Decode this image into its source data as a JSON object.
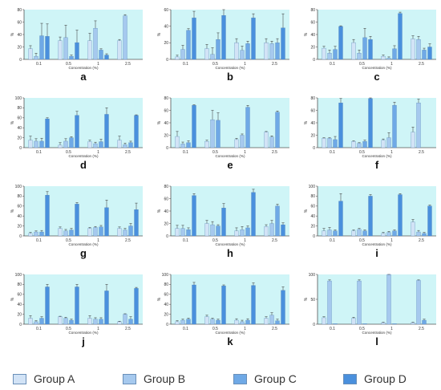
{
  "chart_data": [
    {
      "panel": "a",
      "type": "bar",
      "ylabel": "%",
      "xlabel": "Concentration (%)",
      "categories": [
        "0.1",
        "0.5",
        "1",
        "2.5"
      ],
      "ylim": [
        0,
        80
      ],
      "yticks": [
        0,
        20,
        40,
        60,
        80
      ],
      "series": [
        {
          "name": "Group A",
          "values": [
            17,
            30,
            30,
            30
          ],
          "errors": [
            5,
            6,
            12,
            2
          ]
        },
        {
          "name": "Group B",
          "values": [
            5,
            35,
            50,
            70
          ],
          "errors": [
            5,
            20,
            12,
            2
          ]
        },
        {
          "name": "Group C",
          "values": [
            38,
            5,
            15,
            null
          ],
          "errors": [
            20,
            2,
            2,
            null
          ]
        },
        {
          "name": "Group D",
          "values": [
            37,
            27,
            7,
            null
          ],
          "errors": [
            20,
            20,
            2,
            null
          ]
        }
      ]
    },
    {
      "panel": "b",
      "type": "bar",
      "ylabel": "%",
      "xlabel": "Concentration (%)",
      "categories": [
        "0.1",
        "0.5",
        "1",
        "2.5"
      ],
      "ylim": [
        0,
        60
      ],
      "yticks": [
        0,
        20,
        40,
        60
      ],
      "series": [
        {
          "name": "Group A",
          "values": [
            3,
            13,
            20,
            20
          ],
          "errors": [
            2,
            5,
            5,
            5
          ]
        },
        {
          "name": "Group B",
          "values": [
            12,
            6,
            11,
            19
          ],
          "errors": [
            5,
            8,
            5,
            3
          ]
        },
        {
          "name": "Group C",
          "values": [
            35,
            24,
            19,
            20
          ],
          "errors": [
            2,
            8,
            3,
            5
          ]
        },
        {
          "name": "Group D",
          "values": [
            50,
            53,
            50,
            38
          ],
          "errors": [
            8,
            17,
            5,
            17
          ]
        }
      ]
    },
    {
      "panel": "c",
      "type": "bar",
      "ylabel": "%",
      "xlabel": "Concentration (%)",
      "categories": [
        "0.1",
        "0.5",
        "1",
        "2.5"
      ],
      "ylim": [
        0,
        80
      ],
      "yticks": [
        0,
        20,
        40,
        60,
        80
      ],
      "series": [
        {
          "name": "Group A",
          "values": [
            18,
            27,
            5,
            33
          ],
          "errors": [
            3,
            5,
            2,
            5
          ]
        },
        {
          "name": "Group B",
          "values": [
            10,
            10,
            2,
            32
          ],
          "errors": [
            5,
            5,
            2,
            5
          ]
        },
        {
          "name": "Group C",
          "values": [
            16,
            35,
            17,
            15
          ],
          "errors": [
            5,
            15,
            5,
            3
          ]
        },
        {
          "name": "Group D",
          "values": [
            53,
            32,
            74,
            20
          ],
          "errors": [
            1,
            5,
            2,
            5
          ]
        }
      ]
    },
    {
      "panel": "d",
      "type": "bar",
      "ylabel": "%",
      "xlabel": "Concentration (%)",
      "categories": [
        "0.1",
        "0.5",
        "1",
        "2.5"
      ],
      "ylim": [
        0,
        100
      ],
      "yticks": [
        0,
        20,
        40,
        60,
        80,
        100
      ],
      "series": [
        {
          "name": "Group A",
          "values": [
            15,
            5,
            12,
            15
          ],
          "errors": [
            8,
            5,
            3,
            8
          ]
        },
        {
          "name": "Group B",
          "values": [
            13,
            13,
            8,
            6
          ],
          "errors": [
            5,
            5,
            3,
            3
          ]
        },
        {
          "name": "Group C",
          "values": [
            13,
            20,
            12,
            10
          ],
          "errors": [
            6,
            2,
            5,
            3
          ]
        },
        {
          "name": "Group D",
          "values": [
            58,
            65,
            67,
            65
          ],
          "errors": [
            2,
            8,
            13,
            1
          ]
        }
      ]
    },
    {
      "panel": "e",
      "type": "bar",
      "ylabel": "%",
      "xlabel": "Concentration (%)",
      "categories": [
        "0.1",
        "0.5",
        "1",
        "2.5"
      ],
      "ylim": [
        0,
        80
      ],
      "yticks": [
        0,
        20,
        40,
        60,
        80
      ],
      "series": [
        {
          "name": "Group A",
          "values": [
            18,
            10,
            13,
            25
          ],
          "errors": [
            8,
            2,
            2,
            1
          ]
        },
        {
          "name": "Group B",
          "values": [
            6,
            45,
            20,
            17
          ],
          "errors": [
            3,
            15,
            2,
            2
          ]
        },
        {
          "name": "Group C",
          "values": [
            8,
            44,
            65,
            57
          ],
          "errors": [
            3,
            12,
            3,
            2
          ]
        },
        {
          "name": "Group D",
          "values": [
            68,
            null,
            null,
            null
          ],
          "errors": [
            1,
            null,
            null,
            null
          ]
        }
      ]
    },
    {
      "panel": "f",
      "type": "bar",
      "ylabel": "%",
      "xlabel": "Concentration (%)",
      "categories": [
        "0.1",
        "0.5",
        "1",
        "2.5"
      ],
      "ylim": [
        0,
        80
      ],
      "yticks": [
        0,
        20,
        40,
        60,
        80
      ],
      "series": [
        {
          "name": "Group A",
          "values": [
            15,
            10,
            12,
            25
          ],
          "errors": [
            1,
            1,
            2,
            8
          ]
        },
        {
          "name": "Group B",
          "values": [
            15,
            7,
            16,
            72
          ],
          "errors": [
            1,
            1,
            8,
            6
          ]
        },
        {
          "name": "Group C",
          "values": [
            13,
            10,
            68,
            null
          ],
          "errors": [
            5,
            2,
            5,
            null
          ]
        },
        {
          "name": "Group D",
          "values": [
            72,
            79,
            null,
            null
          ],
          "errors": [
            7,
            1,
            null,
            null
          ]
        }
      ]
    },
    {
      "panel": "g",
      "type": "bar",
      "ylabel": "%",
      "xlabel": "Concentration (%)",
      "categories": [
        "0.1",
        "0.5",
        "1",
        "2.5"
      ],
      "ylim": [
        0,
        100
      ],
      "yticks": [
        0,
        20,
        40,
        60,
        80,
        100
      ],
      "series": [
        {
          "name": "Group A",
          "values": [
            5,
            15,
            15,
            15
          ],
          "errors": [
            2,
            3,
            2,
            3
          ]
        },
        {
          "name": "Group B",
          "values": [
            8,
            10,
            17,
            12
          ],
          "errors": [
            2,
            3,
            2,
            3
          ]
        },
        {
          "name": "Group C",
          "values": [
            8,
            12,
            18,
            20
          ],
          "errors": [
            3,
            3,
            3,
            5
          ]
        },
        {
          "name": "Group D",
          "values": [
            82,
            64,
            57,
            53
          ],
          "errors": [
            7,
            3,
            15,
            13
          ]
        }
      ]
    },
    {
      "panel": "h",
      "type": "bar",
      "ylabel": "%",
      "xlabel": "Concentration (%)",
      "categories": [
        "0.1",
        "0.5",
        "1",
        "2.5"
      ],
      "ylim": [
        0,
        80
      ],
      "yticks": [
        0,
        20,
        40,
        60,
        80
      ],
      "series": [
        {
          "name": "Group A",
          "values": [
            12,
            20,
            8,
            15
          ],
          "errors": [
            5,
            5,
            5,
            3
          ]
        },
        {
          "name": "Group B",
          "values": [
            12,
            18,
            10,
            20
          ],
          "errors": [
            5,
            5,
            5,
            5
          ]
        },
        {
          "name": "Group C",
          "values": [
            10,
            16,
            13,
            48
          ],
          "errors": [
            3,
            2,
            3,
            3
          ]
        },
        {
          "name": "Group D",
          "values": [
            65,
            45,
            70,
            18
          ],
          "errors": [
            3,
            7,
            5,
            3
          ]
        }
      ]
    },
    {
      "panel": "i",
      "type": "bar",
      "ylabel": "%",
      "xlabel": "Concentration (%)",
      "categories": [
        "0.1",
        "0.5",
        "1",
        "2.5"
      ],
      "ylim": [
        0,
        100
      ],
      "yticks": [
        0,
        20,
        40,
        60,
        80,
        100
      ],
      "series": [
        {
          "name": "Group A",
          "values": [
            10,
            10,
            5,
            28
          ],
          "errors": [
            5,
            2,
            2,
            5
          ]
        },
        {
          "name": "Group B",
          "values": [
            12,
            13,
            7,
            8
          ],
          "errors": [
            5,
            2,
            2,
            3
          ]
        },
        {
          "name": "Group C",
          "values": [
            10,
            10,
            10,
            5
          ],
          "errors": [
            2,
            2,
            2,
            2
          ]
        },
        {
          "name": "Group D",
          "values": [
            70,
            80,
            83,
            60
          ],
          "errors": [
            15,
            3,
            2,
            2
          ]
        }
      ]
    },
    {
      "panel": "j",
      "type": "bar",
      "ylabel": "%",
      "xlabel": "Concentration (%)",
      "categories": [
        "0.1",
        "0.5",
        "1",
        "2.5"
      ],
      "ylim": [
        0,
        100
      ],
      "yticks": [
        0,
        20,
        40,
        60,
        80,
        100
      ],
      "series": [
        {
          "name": "Group A",
          "values": [
            12,
            15,
            12,
            5
          ],
          "errors": [
            5,
            1,
            5,
            1
          ]
        },
        {
          "name": "Group B",
          "values": [
            5,
            12,
            10,
            20
          ],
          "errors": [
            2,
            2,
            3,
            1
          ]
        },
        {
          "name": "Group C",
          "values": [
            12,
            8,
            10,
            10
          ],
          "errors": [
            3,
            2,
            3,
            5
          ]
        },
        {
          "name": "Group D",
          "values": [
            75,
            75,
            67,
            72
          ],
          "errors": [
            5,
            5,
            13,
            2
          ]
        }
      ]
    },
    {
      "panel": "k",
      "type": "bar",
      "ylabel": "%",
      "xlabel": "Concentration (%)",
      "categories": [
        "0.1",
        "0.5",
        "1",
        "2.5"
      ],
      "ylim": [
        0,
        100
      ],
      "yticks": [
        0,
        20,
        40,
        60,
        80,
        100
      ],
      "series": [
        {
          "name": "Group A",
          "values": [
            5,
            15,
            8,
            12
          ],
          "errors": [
            2,
            3,
            3,
            3
          ]
        },
        {
          "name": "Group B",
          "values": [
            8,
            10,
            5,
            18
          ],
          "errors": [
            2,
            2,
            3,
            5
          ]
        },
        {
          "name": "Group C",
          "values": [
            10,
            8,
            8,
            7
          ],
          "errors": [
            2,
            2,
            3,
            3
          ]
        },
        {
          "name": "Group D",
          "values": [
            79,
            77,
            78,
            68
          ],
          "errors": [
            5,
            2,
            5,
            7
          ]
        }
      ]
    },
    {
      "panel": "l",
      "type": "bar",
      "ylabel": "%",
      "xlabel": "Concentration (%)",
      "categories": [
        "0.1",
        "0.5",
        "1",
        "2.5"
      ],
      "ylim": [
        0,
        100
      ],
      "yticks": [
        0,
        50,
        100
      ],
      "series": [
        {
          "name": "Group A",
          "values": [
            13,
            12,
            3,
            3
          ],
          "errors": [
            2,
            2,
            1,
            1
          ]
        },
        {
          "name": "Group B",
          "values": [
            87,
            87,
            100,
            88
          ],
          "errors": [
            2,
            2,
            4,
            1
          ]
        },
        {
          "name": "Group C",
          "values": [
            1,
            1,
            1,
            8
          ],
          "errors": [
            0,
            0,
            0,
            2
          ]
        },
        {
          "name": "Group D",
          "values": [
            null,
            null,
            null,
            null
          ],
          "errors": [
            null,
            null,
            null,
            null
          ]
        }
      ]
    }
  ],
  "legend": [
    {
      "label": "Group A",
      "color": "#d2e3f6"
    },
    {
      "label": "Group B",
      "color": "#a6c9ee"
    },
    {
      "label": "Group C",
      "color": "#6fa9e6"
    },
    {
      "label": "Group D",
      "color": "#4a90dd"
    }
  ],
  "colors": {
    "plot_background": "#cff5f7",
    "group_a": "#d2e3f6",
    "group_b": "#a6c9ee",
    "group_c": "#6fa9e6",
    "group_d": "#4a90dd",
    "axis": "#555555",
    "bar_outline": "#4f7fb5"
  }
}
